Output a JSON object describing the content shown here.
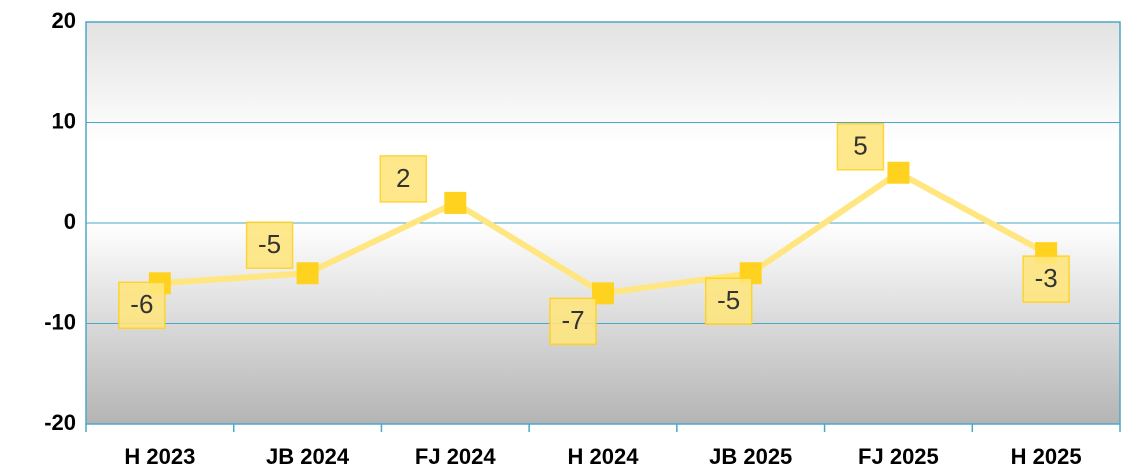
{
  "chart_data": {
    "type": "line",
    "categories": [
      "H 2023",
      "JB 2024",
      "FJ 2024",
      "H 2024",
      "JB 2025",
      "FJ 2025",
      "H 2025"
    ],
    "values": [
      -6,
      -5,
      2,
      -7,
      -5,
      5,
      -3
    ],
    "color": "#ffe680",
    "marker_color": "#ffd21f",
    "ylim": [
      -20,
      20
    ],
    "yticks": [
      -20,
      -10,
      0,
      10,
      20
    ],
    "grid": true
  }
}
